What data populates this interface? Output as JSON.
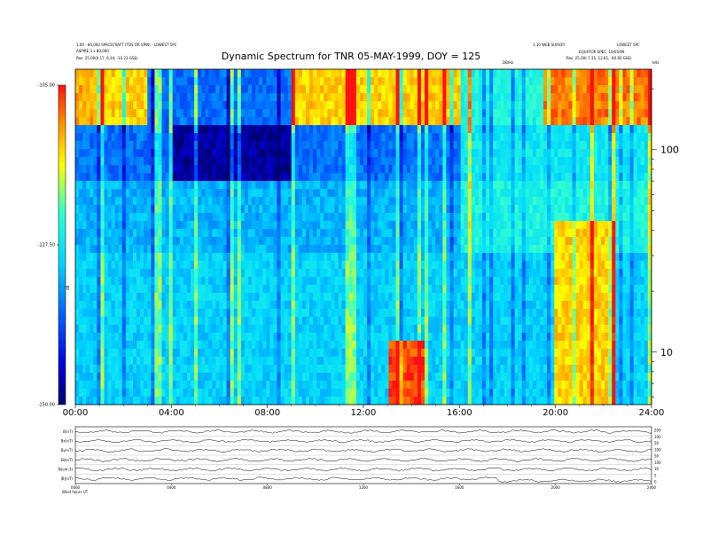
{
  "header": {
    "left_line1": "1.00 - 80,000 SPACECRAFT (TDS OR SPIN) - LOWEST 5PC",
    "left_line2": "ASPIRE 3 x 80,000",
    "left_line3": "Res:   25.00(0.17, 6.34, -33.23 GSE)",
    "right_line1": "1.10 WEB SURVEY",
    "right_line2": "LOWEST 5PC",
    "right_line3": "EQUATOR SPEC, 10/05/99",
    "right_line4": "Res:   25.00(-7.35, 12.81, -40.60 GSE)",
    "top_tag": "DB/Hz",
    "right_unit": "kHz"
  },
  "chart_data": {
    "type": "heatmap",
    "title": "Dynamic Spectrum for TNR 05-MAY-1999, DOY = 125",
    "x_tick_labels": [
      "00:00",
      "04:00",
      "08:00",
      "12:00",
      "16:00",
      "20:00",
      "24:00"
    ],
    "x_range_hours": [
      0,
      24
    ],
    "y_scale": "log",
    "y_tick_labels_khz": [
      "100",
      "10"
    ],
    "y_range_khz": [
      5.5,
      250
    ],
    "colorbar": {
      "tick_labels": [
        "-105.00",
        "-127.50",
        "-150.00"
      ],
      "range_db": [
        -150,
        -105
      ],
      "axis_label": "dB",
      "colors": [
        "#000070",
        "#0000d8",
        "#0060ff",
        "#00d8ff",
        "#30ffd0",
        "#ffff00",
        "#ff9000",
        "#ff1010"
      ]
    },
    "panel_labels": [
      "B(nT)",
      "Bx(nT)",
      "By(nT)",
      "Bz(nT)",
      "N(cm-3)",
      "|B|(nT)"
    ],
    "panel_right_ticks": [
      "200",
      "100",
      "50",
      "100",
      "50",
      "100",
      "10",
      "5",
      "0"
    ],
    "bottom_tick_labels": [
      "0000",
      "0400",
      "0800",
      "1200",
      "1600",
      "2000",
      "2400"
    ],
    "footer_label": "Wind hours UT"
  }
}
